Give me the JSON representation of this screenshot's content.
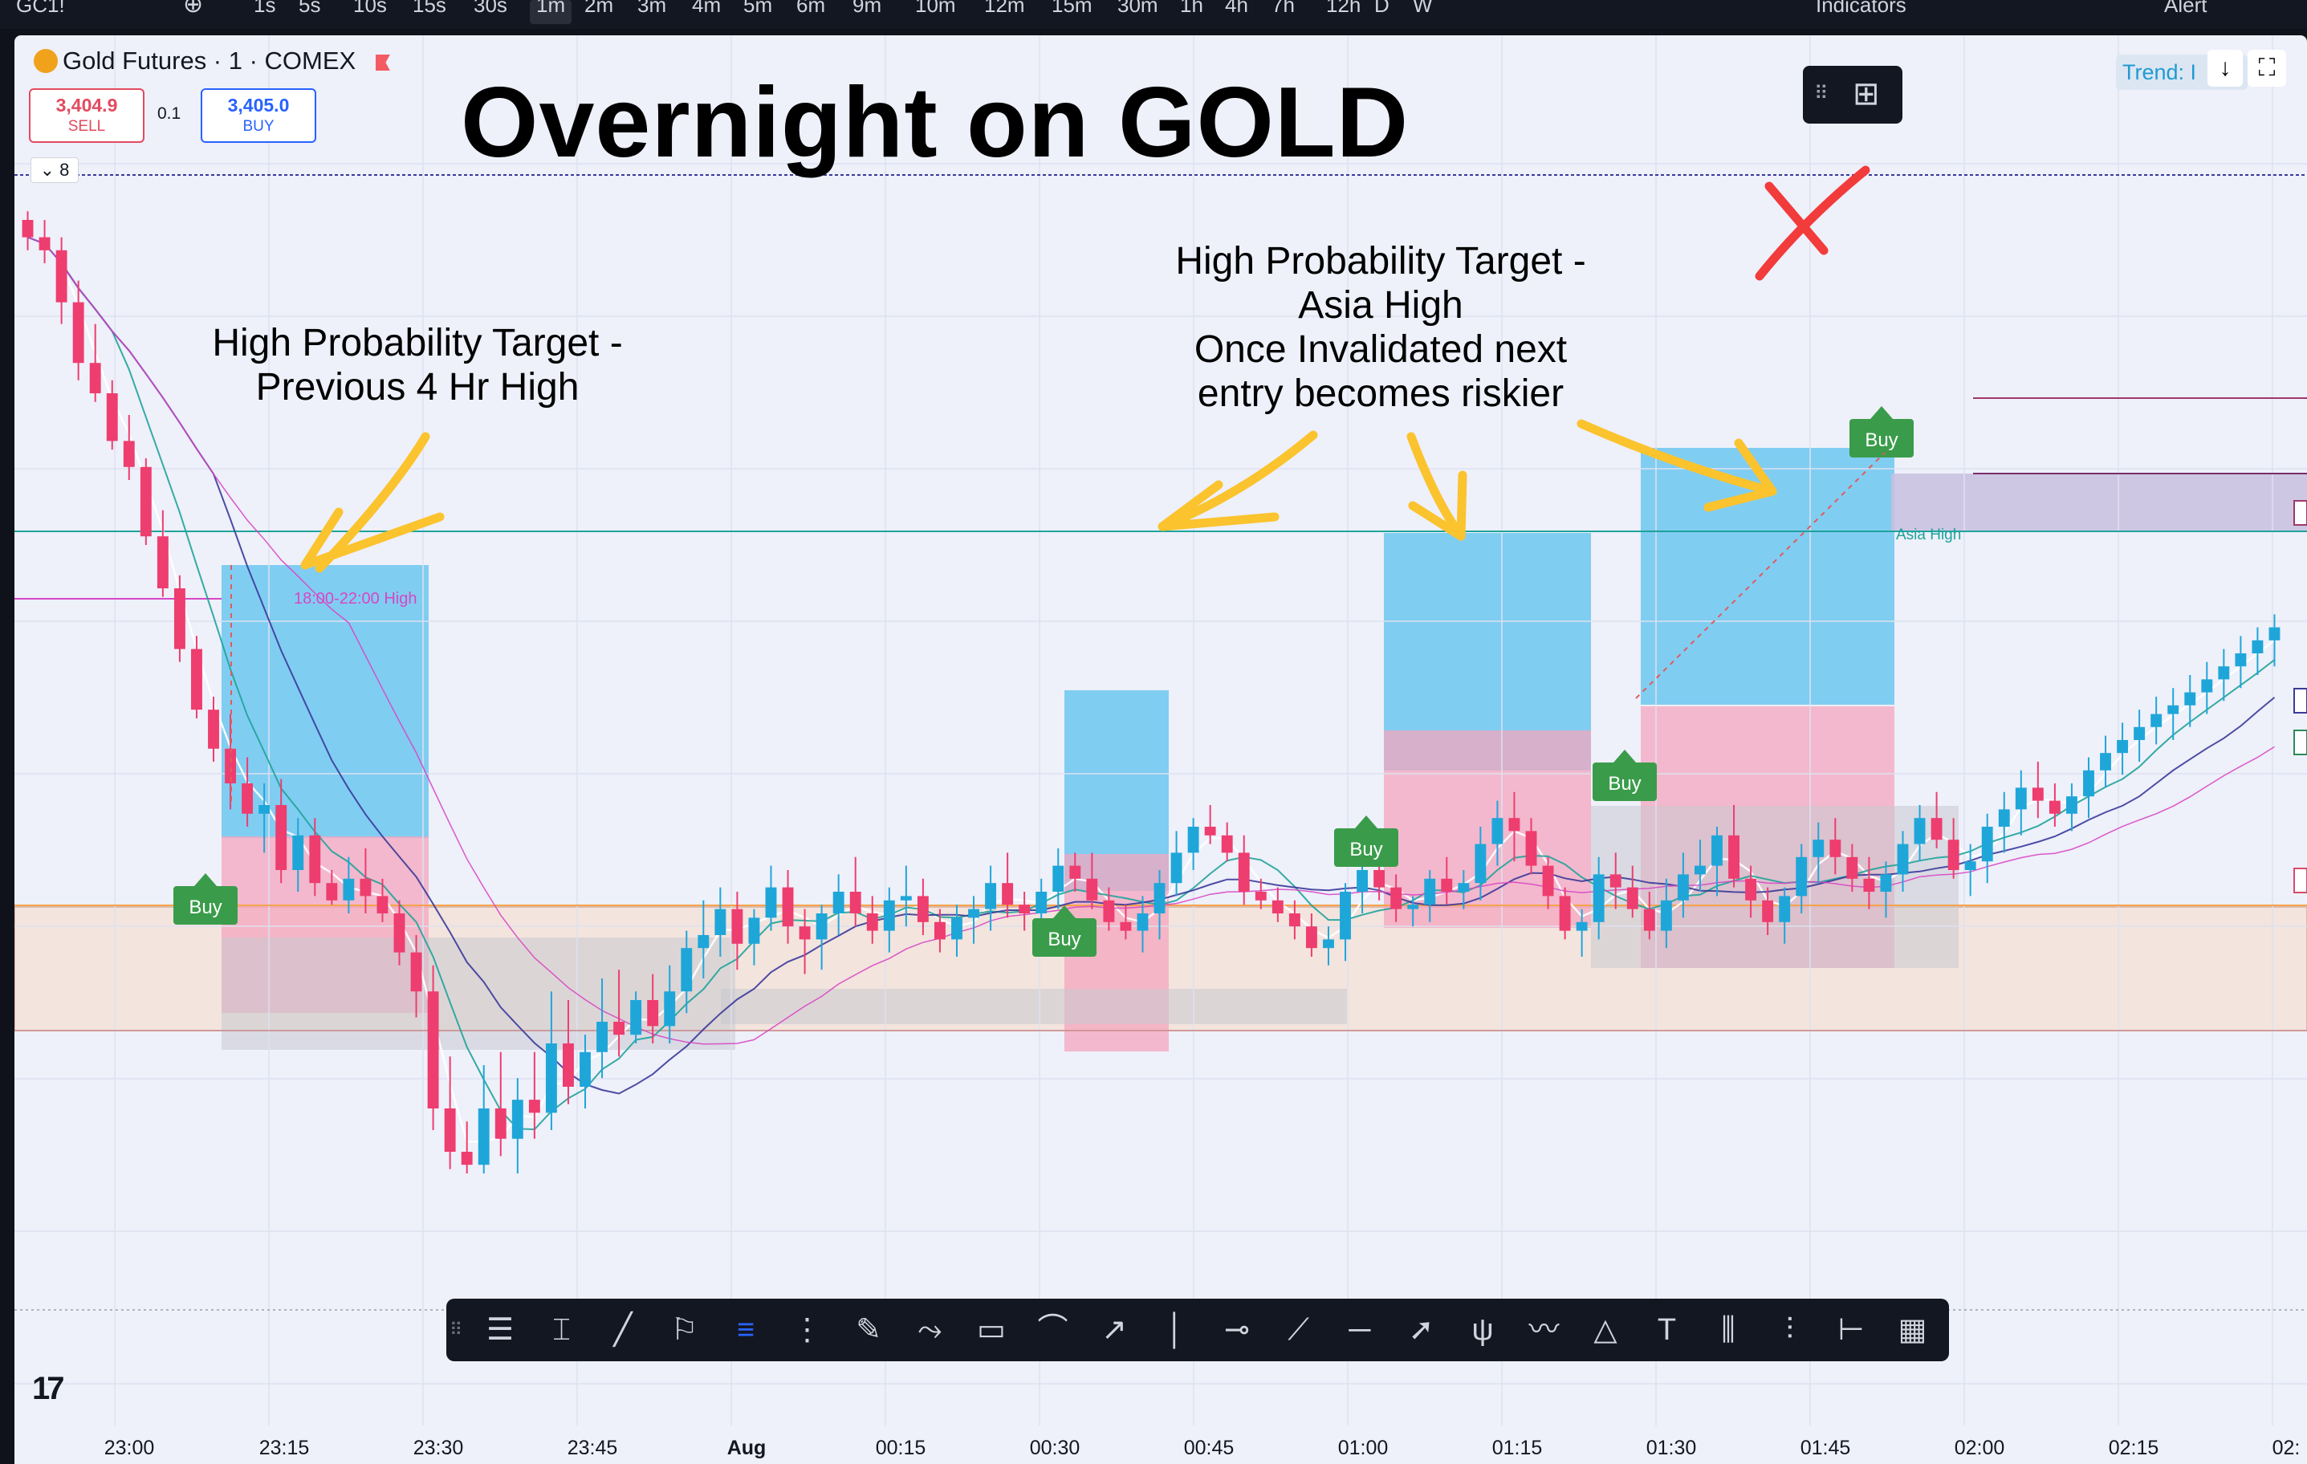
{
  "topbar": {
    "search_label": "GC1!",
    "intervals": [
      "1s",
      "5s",
      "10s",
      "15s",
      "30s",
      "1m",
      "2m",
      "3m",
      "4m",
      "5m",
      "6m",
      "9m",
      "10m",
      "12m",
      "15m",
      "30m",
      "1h",
      "4h",
      "7h",
      "12h",
      "D",
      "W"
    ],
    "active_interval": "1m",
    "indicators_label": "Indicators",
    "alert_label": "Alert"
  },
  "header": {
    "symbol": "Gold Futures · 1 · COMEX",
    "sell_price": "3,404.9",
    "sell_label": "SELL",
    "spread": "0.1",
    "buy_price": "3,405.0",
    "buy_label": "BUY",
    "collapse_count": "8",
    "trend_label": "Trend: I"
  },
  "annotations": {
    "title": "Overnight on GOLD",
    "note1_line1": "High Probability Target -",
    "note1_line2": "Previous 4 Hr High",
    "note2_line1": "High Probability Target -",
    "note2_line2": "Asia High",
    "note2_line3": "Once Invalidated next",
    "note2_line4": "entry becomes riskier",
    "session_label": "18:00-22:00 High",
    "asia_label": "Asia High",
    "signal_label": "Buy"
  },
  "colors": {
    "up": "#1fa6d9",
    "down": "#ee3d6f",
    "target_zone": "#5bc2ef",
    "stop_zone": "#f4a5be",
    "arrow": "#fbc32d",
    "cross": "#f23b3b",
    "buy_signal": "#3a9c4a",
    "teal_line": "#1fa39a",
    "orange_line": "#f5a34a",
    "magenta_line": "#d846c4",
    "navy_line": "#3a3a9a"
  },
  "drawing_tools": [
    "horizontal-lines",
    "vertical-text",
    "trend-line",
    "fib-flag",
    "parallel-channel",
    "multi-lines",
    "brush",
    "path",
    "rectangle",
    "curve",
    "ray",
    "vertical-line",
    "horizontal-ray",
    "segment",
    "horizontal-line",
    "arrow",
    "pitchfork",
    "wave",
    "triangle",
    "text",
    "bars-pattern",
    "forecast",
    "date-range",
    "grid"
  ],
  "chart_data": {
    "type": "candlestick",
    "symbol": "Gold Futures · 1 · COMEX",
    "time_ticks": [
      "23:00",
      "23:15",
      "23:30",
      "23:45",
      "Aug",
      "00:15",
      "00:30",
      "00:45",
      "01:00",
      "01:15",
      "01:30",
      "01:45",
      "02:00",
      "02:15",
      "02:"
    ],
    "candles_ohlc_scaled": [
      [
        250,
        252,
        243,
        246
      ],
      [
        246,
        250,
        240,
        243
      ],
      [
        243,
        246,
        226,
        231
      ],
      [
        231,
        236,
        213,
        217
      ],
      [
        217,
        226,
        208,
        210
      ],
      [
        210,
        213,
        197,
        199
      ],
      [
        199,
        205,
        190,
        193
      ],
      [
        193,
        195,
        175,
        177
      ],
      [
        177,
        183,
        163,
        165
      ],
      [
        165,
        168,
        148,
        151
      ],
      [
        151,
        154,
        135,
        137
      ],
      [
        137,
        140,
        125,
        128
      ],
      [
        128,
        136,
        114,
        120
      ],
      [
        120,
        126,
        110,
        113
      ],
      [
        113,
        120,
        104,
        115
      ],
      [
        115,
        121,
        97,
        100
      ],
      [
        100,
        112,
        95,
        108
      ],
      [
        108,
        112,
        94,
        97
      ],
      [
        97,
        100,
        92,
        93
      ],
      [
        93,
        103,
        90,
        98
      ],
      [
        98,
        105,
        90,
        94
      ],
      [
        94,
        98,
        88,
        90
      ],
      [
        90,
        93,
        78,
        81
      ],
      [
        81,
        85,
        66,
        72
      ],
      [
        72,
        78,
        40,
        45
      ],
      [
        45,
        57,
        31,
        35
      ],
      [
        35,
        42,
        30,
        32
      ],
      [
        32,
        55,
        30,
        45
      ],
      [
        45,
        58,
        34,
        38
      ],
      [
        38,
        52,
        30,
        47
      ],
      [
        47,
        58,
        38,
        44
      ],
      [
        44,
        72,
        40,
        60
      ],
      [
        60,
        70,
        46,
        50
      ],
      [
        50,
        62,
        45,
        58
      ],
      [
        58,
        75,
        52,
        65
      ],
      [
        65,
        77,
        57,
        62
      ],
      [
        62,
        72,
        60,
        70
      ],
      [
        70,
        76,
        60,
        64
      ],
      [
        64,
        78,
        60,
        72
      ],
      [
        72,
        86,
        67,
        82
      ],
      [
        82,
        93,
        75,
        85
      ],
      [
        85,
        96,
        80,
        91
      ],
      [
        91,
        95,
        77,
        83
      ],
      [
        83,
        91,
        78,
        89
      ],
      [
        89,
        101,
        86,
        96
      ],
      [
        96,
        100,
        83,
        87
      ],
      [
        87,
        91,
        76,
        84
      ],
      [
        84,
        92,
        77,
        90
      ],
      [
        90,
        99,
        85,
        95
      ],
      [
        95,
        103,
        87,
        90
      ],
      [
        90,
        94,
        83,
        86
      ],
      [
        86,
        96,
        81,
        93
      ],
      [
        93,
        101,
        87,
        94
      ],
      [
        94,
        98,
        85,
        88
      ],
      [
        88,
        91,
        81,
        84
      ],
      [
        84,
        92,
        80,
        89
      ],
      [
        89,
        94,
        83,
        91
      ],
      [
        91,
        101,
        86,
        97
      ],
      [
        97,
        104,
        89,
        92
      ],
      [
        92,
        95,
        86,
        90
      ],
      [
        90,
        98,
        87,
        95
      ],
      [
        95,
        105,
        91,
        101
      ],
      [
        101,
        104,
        95,
        98
      ],
      [
        98,
        104,
        91,
        93
      ],
      [
        93,
        96,
        86,
        88
      ],
      [
        88,
        92,
        84,
        86
      ],
      [
        86,
        94,
        81,
        90
      ],
      [
        90,
        100,
        84,
        97
      ],
      [
        97,
        109,
        94,
        104
      ],
      [
        104,
        112,
        100,
        110
      ],
      [
        110,
        115,
        106,
        108
      ],
      [
        108,
        111,
        102,
        104
      ],
      [
        104,
        108,
        92,
        95
      ],
      [
        95,
        98,
        91,
        93
      ],
      [
        93,
        96,
        88,
        90
      ],
      [
        90,
        93,
        84,
        87
      ],
      [
        87,
        90,
        80,
        82
      ],
      [
        82,
        87,
        78,
        84
      ],
      [
        84,
        97,
        79,
        95
      ],
      [
        95,
        104,
        90,
        100
      ],
      [
        100,
        105,
        93,
        96
      ],
      [
        96,
        99,
        88,
        91
      ],
      [
        91,
        94,
        87,
        92
      ],
      [
        92,
        100,
        88,
        98
      ],
      [
        98,
        103,
        92,
        95
      ],
      [
        95,
        100,
        91,
        97
      ],
      [
        97,
        110,
        93,
        106
      ],
      [
        106,
        116,
        101,
        112
      ],
      [
        112,
        118,
        102,
        109
      ],
      [
        109,
        112,
        99,
        101
      ],
      [
        101,
        103,
        91,
        94
      ],
      [
        94,
        96,
        84,
        86
      ],
      [
        86,
        91,
        80,
        88
      ],
      [
        88,
        103,
        84,
        99
      ],
      [
        99,
        104,
        91,
        96
      ],
      [
        96,
        101,
        89,
        91
      ],
      [
        91,
        95,
        84,
        86
      ],
      [
        86,
        98,
        82,
        93
      ],
      [
        93,
        104,
        89,
        99
      ],
      [
        99,
        107,
        95,
        101
      ],
      [
        101,
        110,
        94,
        108
      ],
      [
        108,
        115,
        96,
        98
      ],
      [
        98,
        101,
        89,
        93
      ],
      [
        93,
        96,
        85,
        88
      ],
      [
        88,
        96,
        83,
        94
      ],
      [
        94,
        106,
        90,
        103
      ],
      [
        103,
        111,
        97,
        107
      ],
      [
        107,
        112,
        99,
        103
      ],
      [
        103,
        106,
        95,
        98
      ],
      [
        98,
        103,
        91,
        95
      ],
      [
        95,
        102,
        89,
        99
      ],
      [
        99,
        109,
        95,
        106
      ],
      [
        106,
        115,
        102,
        112
      ],
      [
        112,
        118,
        105,
        107
      ],
      [
        107,
        112,
        98,
        100
      ],
      [
        100,
        106,
        94,
        102
      ],
      [
        102,
        113,
        97,
        110
      ],
      [
        110,
        118,
        104,
        114
      ],
      [
        114,
        123,
        108,
        119
      ],
      [
        119,
        125,
        112,
        116
      ],
      [
        116,
        120,
        110,
        113
      ],
      [
        113,
        120,
        109,
        117
      ],
      [
        117,
        126,
        112,
        123
      ],
      [
        123,
        131,
        119,
        127
      ],
      [
        127,
        134,
        122,
        130
      ],
      [
        130,
        137,
        125,
        133
      ],
      [
        133,
        140,
        129,
        136
      ],
      [
        136,
        142,
        130,
        138
      ],
      [
        138,
        145,
        133,
        141
      ],
      [
        141,
        148,
        136,
        144
      ],
      [
        144,
        151,
        139,
        147
      ],
      [
        147,
        154,
        142,
        150
      ],
      [
        150,
        156,
        145,
        153
      ],
      [
        153,
        159,
        147,
        156
      ]
    ]
  }
}
